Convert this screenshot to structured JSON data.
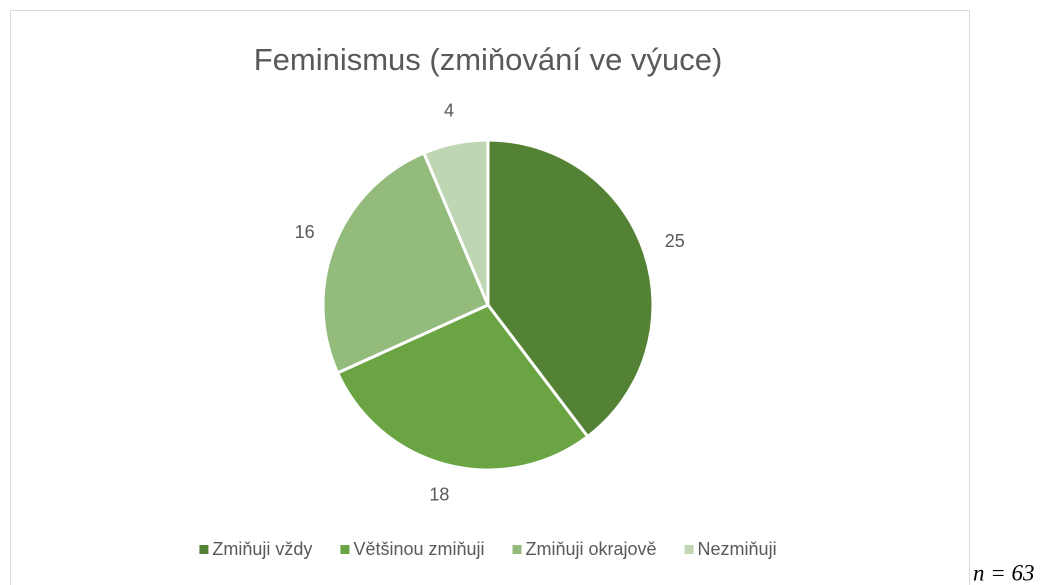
{
  "chart_data": {
    "type": "pie",
    "title": "Feminismus (zmiňování ve výuce)",
    "categories": [
      "Zmiňuji vždy",
      "Většinou zmiňuji",
      "Zmiňuji okrajově",
      "Nezmiňuji"
    ],
    "values": [
      25,
      18,
      16,
      4
    ],
    "colors": [
      "#548235",
      "#6aa443",
      "#93bb7b",
      "#bfd6b3"
    ],
    "legend": "bottom",
    "annotation": "n = 63"
  }
}
